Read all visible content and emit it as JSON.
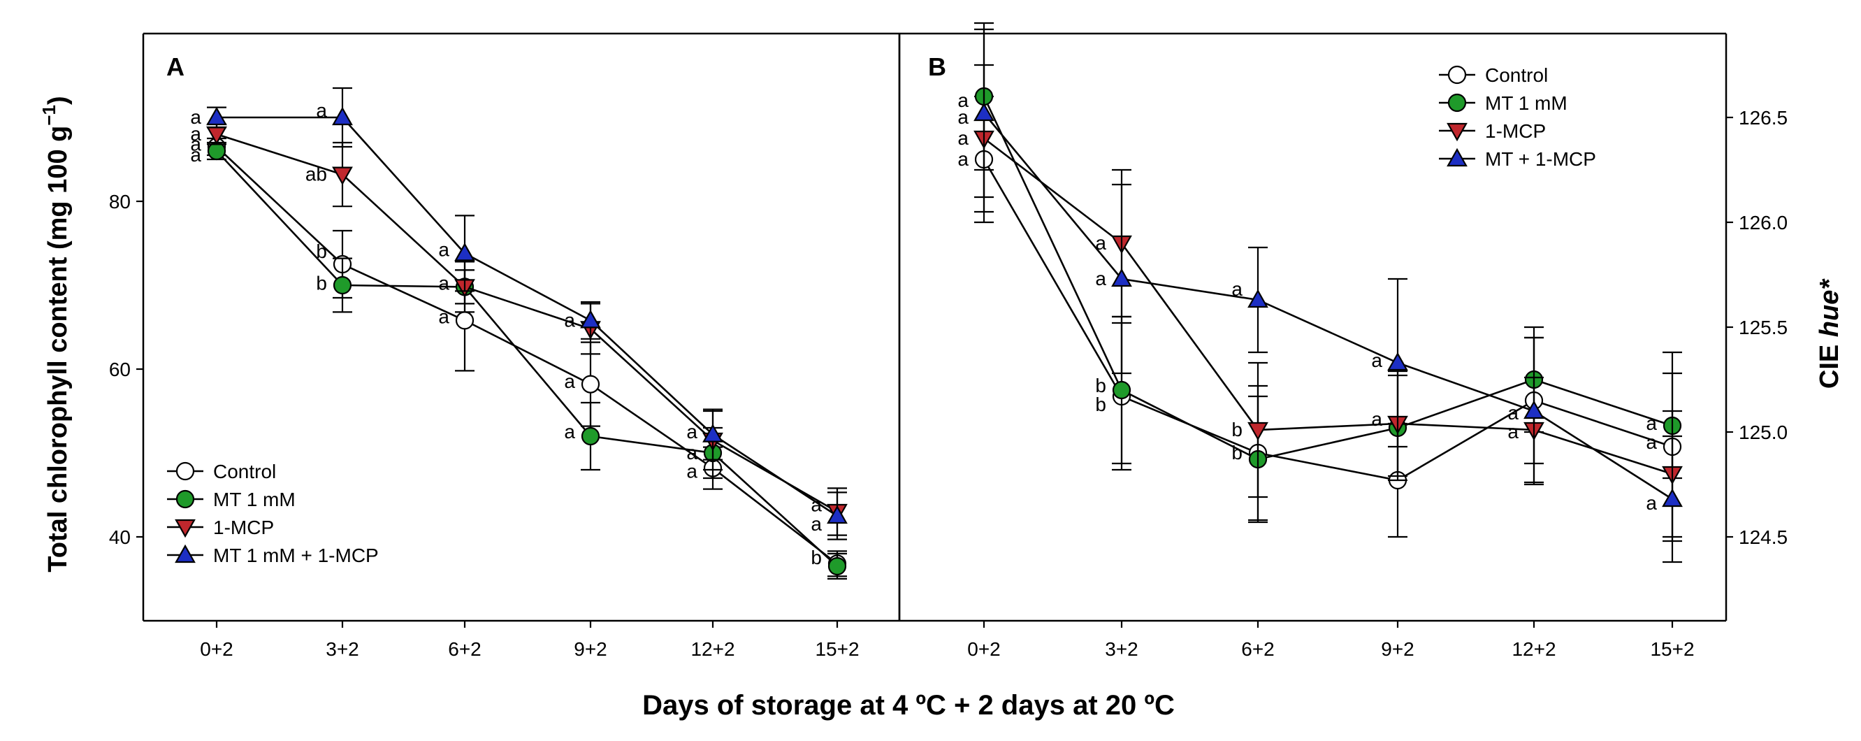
{
  "figure": {
    "xlabel": "Days of storage at 4 ºC + 2 days at 20 ºC"
  },
  "series_style": [
    {
      "name": "Control",
      "marker": "circle",
      "fill": "#ffffff"
    },
    {
      "name": "MT 1 mM",
      "marker": "circle",
      "fill": "#1f9a2a"
    },
    {
      "name": "1-MCP",
      "marker": "triangle-down",
      "fill": "#c0272d"
    },
    {
      "name": "MT 1 mM + 1-MCP",
      "marker": "triangle-up",
      "fill": "#1d2fc4"
    }
  ],
  "chart_data": [
    {
      "panel": "A",
      "type": "line",
      "ylabel_main": "Total chlorophyll content (mg 100 g",
      "ylabel_sup": "−1",
      "ylabel_close": ")",
      "ylim": [
        30,
        100
      ],
      "yticks": [
        40,
        60,
        80
      ],
      "categories": [
        "0+2",
        "3+2",
        "6+2",
        "9+2",
        "12+2",
        "15+2"
      ],
      "legend_position": "bottom-left",
      "legend": [
        "Control",
        "MT 1 mM",
        "1-MCP",
        " MT 1 mM + 1-MCP"
      ],
      "series": [
        {
          "name": "Control",
          "values": [
            86.5,
            72.5,
            65.8,
            58.2,
            48.2,
            36.8
          ],
          "err": [
            1.0,
            4.0,
            6.0,
            5.0,
            2.5,
            1.5
          ]
        },
        {
          "name": "MT 1 mM",
          "values": [
            86.0,
            70.0,
            69.8,
            52.0,
            50.0,
            36.5
          ],
          "err": [
            1.0,
            3.2,
            2.0,
            4.0,
            3.0,
            1.5
          ]
        },
        {
          "name": "1-MCP",
          "values": [
            88.0,
            83.2,
            69.8,
            64.8,
            51.5,
            43.0
          ],
          "err": [
            1.2,
            3.8,
            3.0,
            3.0,
            3.5,
            2.8
          ]
        },
        {
          "name": "MT 1 mM + 1-MCP",
          "values": [
            90.0,
            90.0,
            73.8,
            65.8,
            52.2,
            42.5
          ],
          "err": [
            1.2,
            3.5,
            4.5,
            2.2,
            3.0,
            2.8
          ]
        }
      ],
      "annotations": [
        {
          "x": 0,
          "y": 90.0,
          "text": "a"
        },
        {
          "x": 0,
          "y": 88.0,
          "text": "a"
        },
        {
          "x": 0,
          "y": 86.8,
          "text": "a"
        },
        {
          "x": 0,
          "y": 85.5,
          "text": "a"
        },
        {
          "x": 1,
          "y": 90.8,
          "text": "a"
        },
        {
          "x": 1,
          "y": 83.2,
          "text": "ab"
        },
        {
          "x": 1,
          "y": 74.0,
          "text": "b"
        },
        {
          "x": 1,
          "y": 70.2,
          "text": "b"
        },
        {
          "x": 2,
          "y": 74.2,
          "text": "a"
        },
        {
          "x": 2,
          "y": 70.2,
          "text": "a"
        },
        {
          "x": 2,
          "y": 66.2,
          "text": "a"
        },
        {
          "x": 3,
          "y": 65.8,
          "text": "a"
        },
        {
          "x": 3,
          "y": 58.5,
          "text": "a"
        },
        {
          "x": 3,
          "y": 52.5,
          "text": "a"
        },
        {
          "x": 4,
          "y": 52.5,
          "text": "a"
        },
        {
          "x": 4,
          "y": 50.0,
          "text": "a"
        },
        {
          "x": 4,
          "y": 47.8,
          "text": "a"
        },
        {
          "x": 5,
          "y": 43.8,
          "text": "a"
        },
        {
          "x": 5,
          "y": 41.5,
          "text": "a"
        },
        {
          "x": 5,
          "y": 37.5,
          "text": "b"
        }
      ],
      "label": "A"
    },
    {
      "panel": "B",
      "type": "line",
      "ylabel_main": "CIE ",
      "ylabel_italic": "hue*",
      "ylim": [
        124.1,
        126.9
      ],
      "yticks": [
        124.5,
        125.0,
        125.5,
        126.0,
        126.5
      ],
      "ytick_labels": [
        "124.5",
        "125.0",
        "125.5",
        "126.0",
        "126.5"
      ],
      "categories": [
        "0+2",
        "3+2",
        "6+2",
        "9+2",
        "12+2",
        "15+2"
      ],
      "legend_position": "top-right",
      "legend": [
        "Control",
        "MT 1 mM",
        "1-MCP",
        "MT + 1-MCP"
      ],
      "series": [
        {
          "name": "Control",
          "values": [
            126.3,
            125.17,
            124.9,
            124.77,
            125.15,
            124.93
          ],
          "err": [
            0.3,
            0.35,
            0.32,
            0.27,
            0.3,
            0.45
          ]
        },
        {
          "name": "MT 1 mM",
          "values": [
            126.6,
            125.2,
            124.87,
            125.02,
            125.25,
            125.03
          ],
          "err": [
            0.35,
            0.35,
            0.3,
            0.25,
            0.25,
            0.25
          ]
        },
        {
          "name": "1-MCP",
          "values": [
            126.4,
            125.9,
            125.01,
            125.04,
            125.01,
            124.8
          ],
          "err": [
            0.35,
            0.35,
            0.32,
            0.25,
            0.25,
            0.3
          ]
        },
        {
          "name": "MT + 1-MCP",
          "values": [
            126.52,
            125.73,
            125.63,
            125.33,
            125.1,
            124.68
          ],
          "err": [
            0.4,
            0.45,
            0.25,
            0.4,
            0.35,
            0.3
          ]
        }
      ],
      "annotations": [
        {
          "x": 0,
          "y": 126.58,
          "text": "a"
        },
        {
          "x": 0,
          "y": 126.5,
          "text": "a"
        },
        {
          "x": 0,
          "y": 126.4,
          "text": "a"
        },
        {
          "x": 0,
          "y": 126.3,
          "text": "a"
        },
        {
          "x": 1,
          "y": 125.9,
          "text": "a"
        },
        {
          "x": 1,
          "y": 125.73,
          "text": "a"
        },
        {
          "x": 1,
          "y": 125.22,
          "text": "b"
        },
        {
          "x": 1,
          "y": 125.13,
          "text": "b"
        },
        {
          "x": 2,
          "y": 125.68,
          "text": "a"
        },
        {
          "x": 2,
          "y": 125.01,
          "text": "b"
        },
        {
          "x": 2,
          "y": 124.9,
          "text": "b"
        },
        {
          "x": 3,
          "y": 125.34,
          "text": "a"
        },
        {
          "x": 3,
          "y": 125.06,
          "text": "a"
        },
        {
          "x": 4,
          "y": 125.09,
          "text": "a"
        },
        {
          "x": 4,
          "y": 125.0,
          "text": "a"
        },
        {
          "x": 5,
          "y": 125.04,
          "text": "a"
        },
        {
          "x": 5,
          "y": 124.95,
          "text": "a"
        },
        {
          "x": 5,
          "y": 124.66,
          "text": "a"
        }
      ],
      "label": "B"
    }
  ]
}
